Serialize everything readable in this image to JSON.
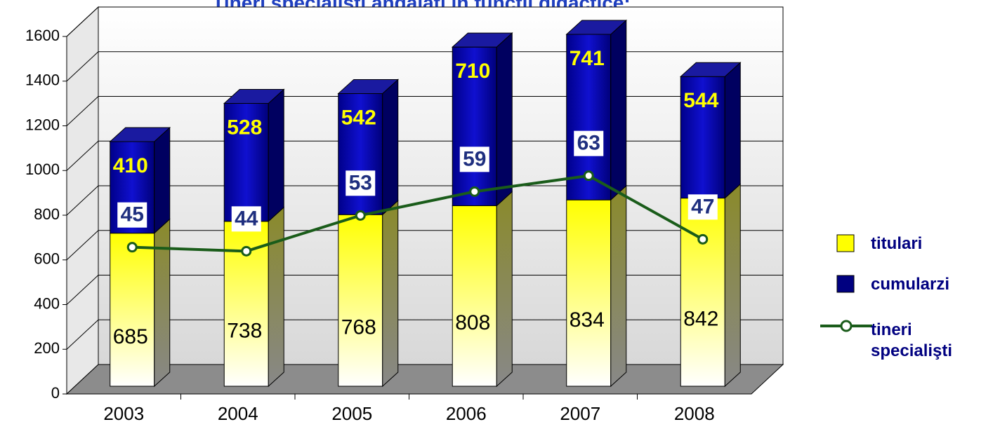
{
  "chart_data": {
    "type": "bar",
    "stacked": true,
    "title": "Tineri specialişti angajaţi în funcţii didactice:",
    "categories": [
      "2003",
      "2004",
      "2005",
      "2006",
      "2007",
      "2008"
    ],
    "series": [
      {
        "name": "titulari",
        "color": "#ffff00",
        "values": [
          685,
          738,
          768,
          808,
          834,
          842
        ]
      },
      {
        "name": "cumularzi",
        "color": "#000080",
        "values": [
          410,
          528,
          542,
          710,
          741,
          544
        ]
      },
      {
        "name": "tineri specialişti",
        "type": "line",
        "axis": "y2",
        "color": "#1a5c1a",
        "values": [
          45,
          44,
          53,
          59,
          63,
          47
        ]
      }
    ],
    "ylim": [
      0,
      1600
    ],
    "yticks": [
      0,
      200,
      400,
      600,
      800,
      1000,
      1200,
      1400,
      1600
    ],
    "y2lim": [
      10,
      100
    ],
    "grid": true,
    "legend": "right"
  }
}
